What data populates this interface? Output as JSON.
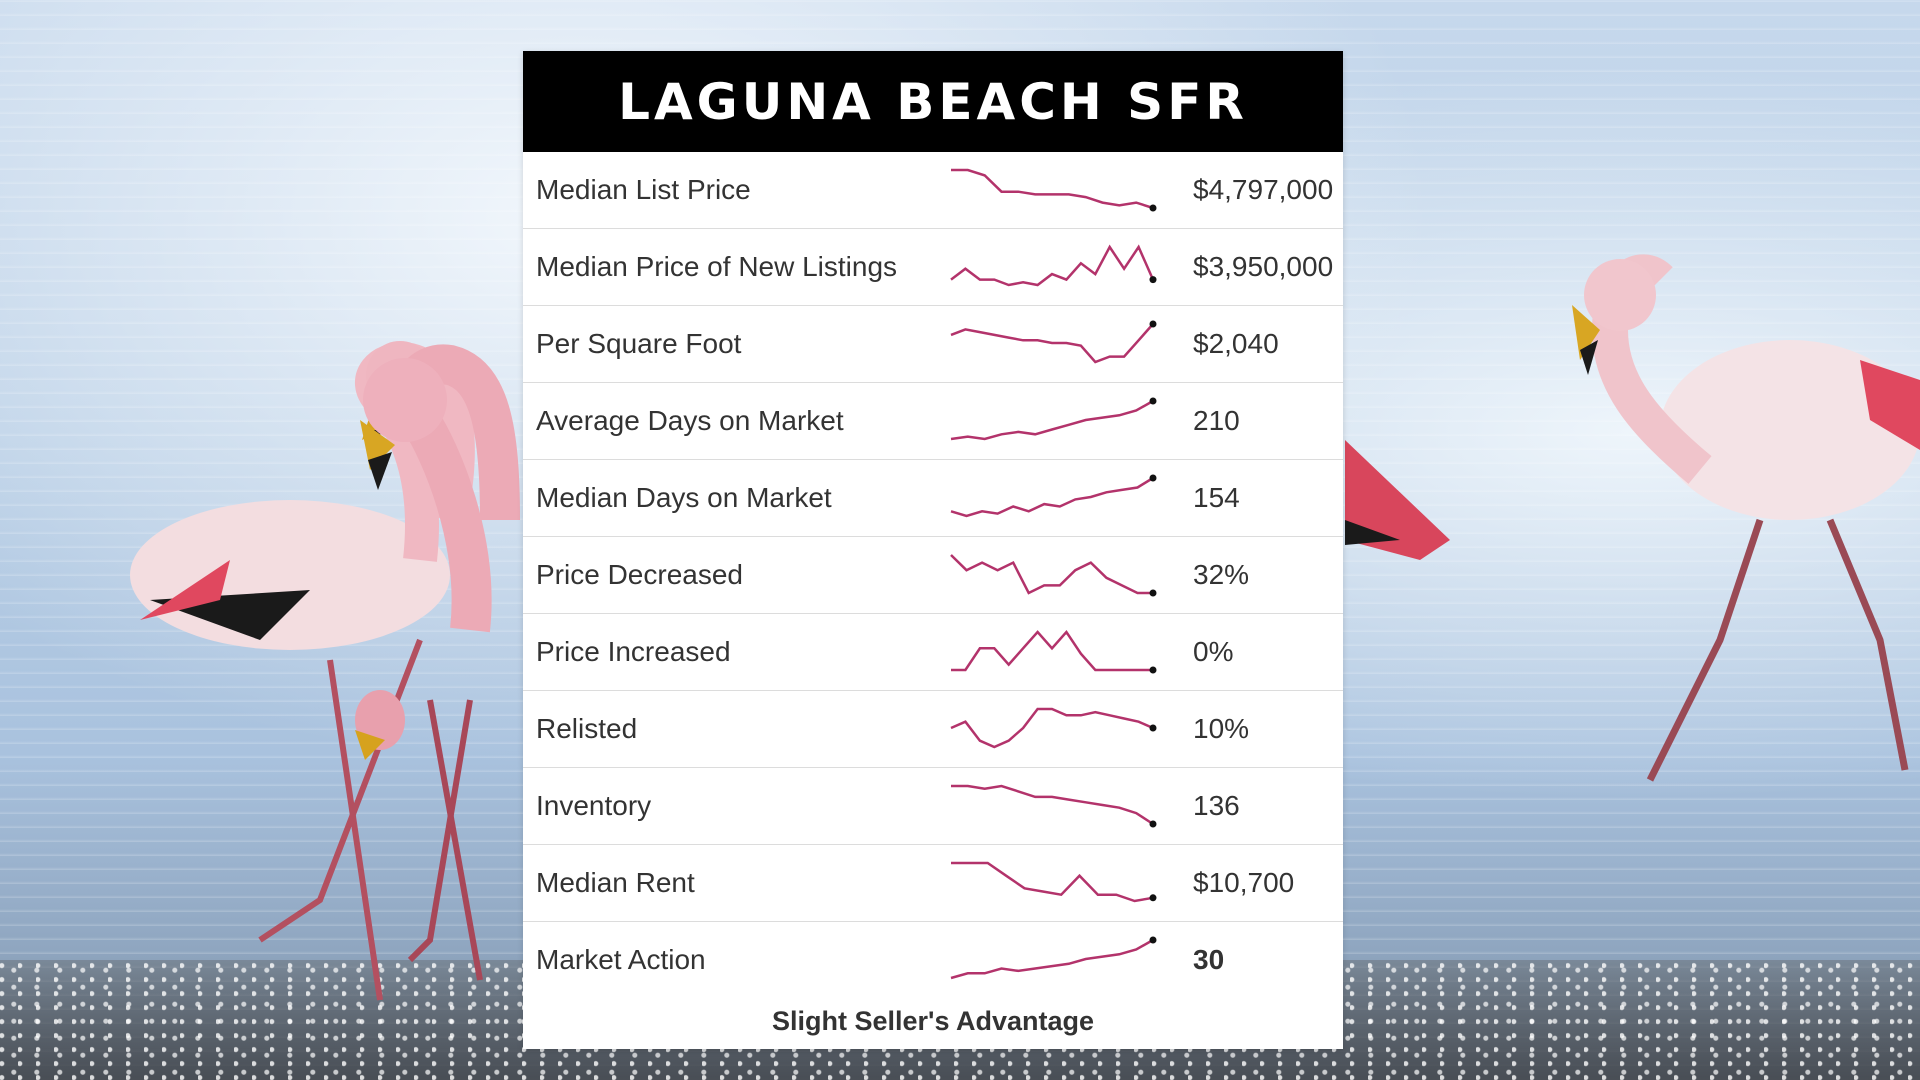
{
  "title": "LAGUNA BEACH SFR",
  "colors": {
    "sparkline": "#b3336b",
    "header_bg": "#000000",
    "header_text": "#ffffff"
  },
  "metrics": [
    {
      "label": "Median List Price",
      "value": "$4,797,000",
      "bold": false,
      "trend": [
        10,
        10,
        9,
        6,
        6,
        5.5,
        5.5,
        5.5,
        5,
        4,
        3.5,
        4,
        3
      ]
    },
    {
      "label": "Median Price of New Listings",
      "value": "$3,950,000",
      "bold": false,
      "trend": [
        3,
        5,
        3,
        3,
        2,
        2.5,
        2,
        4,
        3,
        6,
        4,
        9,
        5,
        9,
        3
      ]
    },
    {
      "label": "Per Square Foot",
      "value": "$2,040",
      "bold": false,
      "trend": [
        7,
        8,
        7.5,
        7,
        6.5,
        6,
        6,
        5.5,
        5.5,
        5,
        2,
        3,
        3,
        6,
        9
      ]
    },
    {
      "label": "Average Days on Market",
      "value": "210",
      "bold": false,
      "trend": [
        1,
        1.5,
        1,
        2,
        2.5,
        2,
        3,
        4,
        5,
        5.5,
        6,
        7,
        9
      ]
    },
    {
      "label": "Median Days on Market",
      "value": "154",
      "bold": false,
      "trend": [
        2,
        1,
        2,
        1.5,
        3,
        2,
        3.5,
        3,
        4.5,
        5,
        6,
        6.5,
        7,
        9
      ]
    },
    {
      "label": "Price Decreased",
      "value": "32%",
      "bold": false,
      "trend": [
        8,
        6,
        7,
        6,
        7,
        3,
        4,
        4,
        6,
        7,
        5,
        4,
        3,
        3
      ]
    },
    {
      "label": "Price Increased",
      "value": "0%",
      "bold": false,
      "trend": [
        0,
        0,
        4,
        4,
        1,
        4,
        7,
        4,
        7,
        3,
        0,
        0,
        0,
        0,
        0
      ]
    },
    {
      "label": "Relisted",
      "value": "10%",
      "bold": false,
      "trend": [
        5,
        6,
        3,
        2,
        3,
        5,
        8,
        8,
        7,
        7,
        7.5,
        7,
        6.5,
        6,
        5
      ]
    },
    {
      "label": "Inventory",
      "value": "136",
      "bold": false,
      "trend": [
        8,
        8,
        7.5,
        8,
        7,
        6,
        6,
        5.5,
        5,
        4.5,
        4,
        3,
        1
      ]
    },
    {
      "label": "Median Rent",
      "value": "$10,700",
      "bold": false,
      "trend": [
        9,
        9,
        9,
        7,
        5,
        4.5,
        4,
        7,
        4,
        4,
        3,
        3.5
      ]
    },
    {
      "label": "Market Action",
      "value": "30",
      "bold": true,
      "trend": [
        1,
        2,
        2,
        3,
        2.5,
        3,
        3.5,
        4,
        5,
        5.5,
        6,
        7,
        9
      ]
    }
  ],
  "footer": "Slight Seller's Advantage"
}
